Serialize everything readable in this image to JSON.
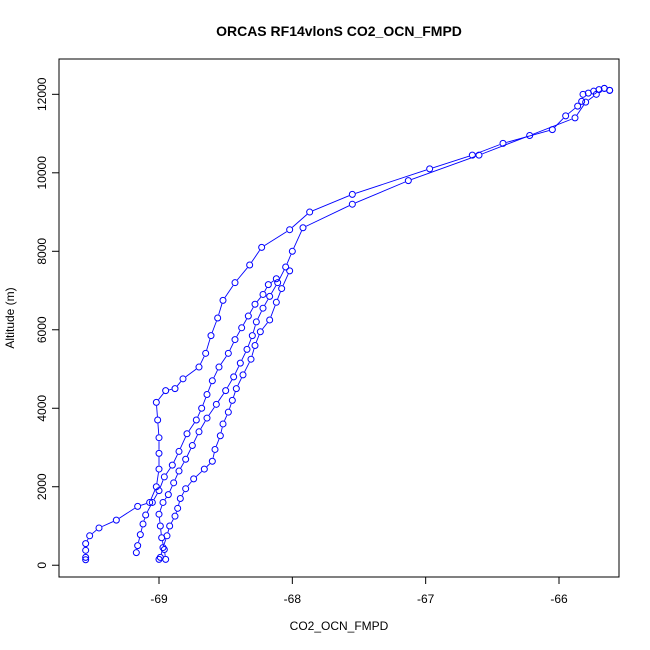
{
  "chart_data": {
    "type": "scatter",
    "title": "ORCAS RF14vlonS CO2_OCN_FMPD",
    "xlabel": "CO2_OCN_FMPD",
    "ylabel": "Altitude (m)",
    "xlim": [
      -69.75,
      -65.55
    ],
    "ylim": [
      -300,
      12900
    ],
    "xticks": [
      -69,
      -68,
      -67,
      -66
    ],
    "yticks": [
      0,
      2000,
      4000,
      6000,
      8000,
      10000,
      12000
    ],
    "color": "#0000ff",
    "grid": false,
    "series": [
      {
        "style": "line+points",
        "points": [
          [
            -65.62,
            12100
          ],
          [
            -65.66,
            12150
          ],
          [
            -65.7,
            12120
          ],
          [
            -65.74,
            12080
          ],
          [
            -65.78,
            12030
          ],
          [
            -65.82,
            12000
          ],
          [
            -65.83,
            11820
          ],
          [
            -65.86,
            11700
          ],
          [
            -65.95,
            11450
          ],
          [
            -66.05,
            11100
          ],
          [
            -66.42,
            10750
          ],
          [
            -66.65,
            10450
          ],
          [
            -66.97,
            10100
          ],
          [
            -67.55,
            9450
          ],
          [
            -67.87,
            9000
          ],
          [
            -68.02,
            8550
          ],
          [
            -68.23,
            8100
          ],
          [
            -68.32,
            7650
          ],
          [
            -68.43,
            7200
          ],
          [
            -68.52,
            6750
          ],
          [
            -68.56,
            6300
          ],
          [
            -68.61,
            5850
          ],
          [
            -68.65,
            5400
          ],
          [
            -68.7,
            5050
          ],
          [
            -68.82,
            4750
          ],
          [
            -68.88,
            4500
          ],
          [
            -68.95,
            4450
          ],
          [
            -69.02,
            4150
          ],
          [
            -69.01,
            3700
          ],
          [
            -69.0,
            3250
          ],
          [
            -69.0,
            2850
          ],
          [
            -69.0,
            2450
          ],
          [
            -69.02,
            2000
          ],
          [
            -69.07,
            1600
          ],
          [
            -69.16,
            1500
          ],
          [
            -69.32,
            1150
          ],
          [
            -69.45,
            950
          ],
          [
            -69.52,
            750
          ],
          [
            -69.55,
            550
          ],
          [
            -69.55,
            380
          ],
          [
            -69.55,
            200
          ],
          [
            -69.55,
            140
          ]
        ]
      },
      {
        "style": "line+points",
        "points": [
          [
            -69.17,
            320
          ],
          [
            -69.16,
            500
          ],
          [
            -69.14,
            780
          ],
          [
            -69.12,
            1050
          ],
          [
            -69.1,
            1280
          ],
          [
            -69.05,
            1600
          ],
          [
            -69.0,
            1900
          ],
          [
            -68.96,
            2250
          ],
          [
            -68.9,
            2550
          ],
          [
            -68.85,
            2900
          ],
          [
            -68.79,
            3350
          ],
          [
            -68.72,
            3700
          ],
          [
            -68.68,
            4000
          ],
          [
            -68.64,
            4350
          ],
          [
            -68.6,
            4700
          ],
          [
            -68.55,
            5050
          ],
          [
            -68.48,
            5400
          ],
          [
            -68.43,
            5750
          ],
          [
            -68.38,
            6050
          ],
          [
            -68.33,
            6350
          ],
          [
            -68.28,
            6650
          ],
          [
            -68.22,
            6900
          ],
          [
            -68.18,
            7150
          ],
          [
            -68.12,
            7300
          ]
        ]
      },
      {
        "style": "line+points",
        "points": [
          [
            -68.02,
            7500
          ],
          [
            -68.08,
            7050
          ],
          [
            -68.12,
            6700
          ],
          [
            -68.17,
            6250
          ],
          [
            -68.24,
            5950
          ],
          [
            -68.28,
            5600
          ],
          [
            -68.31,
            5250
          ],
          [
            -68.37,
            4850
          ],
          [
            -68.42,
            4500
          ],
          [
            -68.45,
            4200
          ],
          [
            -68.48,
            3900
          ],
          [
            -68.52,
            3600
          ],
          [
            -68.54,
            3300
          ],
          [
            -68.58,
            2950
          ],
          [
            -68.6,
            2650
          ],
          [
            -68.66,
            2450
          ],
          [
            -68.74,
            2200
          ],
          [
            -68.8,
            1950
          ],
          [
            -68.84,
            1700
          ],
          [
            -68.86,
            1450
          ],
          [
            -68.88,
            1250
          ],
          [
            -68.92,
            1000
          ],
          [
            -68.94,
            750
          ],
          [
            -68.97,
            450
          ],
          [
            -68.99,
            200
          ],
          [
            -69.0,
            150
          ]
        ]
      },
      {
        "style": "line+points",
        "points": [
          [
            -68.95,
            150
          ],
          [
            -68.96,
            400
          ],
          [
            -68.98,
            700
          ],
          [
            -68.99,
            1000
          ],
          [
            -69.0,
            1300
          ],
          [
            -68.97,
            1600
          ],
          [
            -68.93,
            1800
          ],
          [
            -68.89,
            2100
          ],
          [
            -68.85,
            2400
          ],
          [
            -68.8,
            2700
          ],
          [
            -68.75,
            3050
          ],
          [
            -68.7,
            3400
          ],
          [
            -68.64,
            3750
          ],
          [
            -68.57,
            4100
          ],
          [
            -68.5,
            4450
          ],
          [
            -68.44,
            4800
          ],
          [
            -68.39,
            5150
          ],
          [
            -68.34,
            5500
          ],
          [
            -68.3,
            5850
          ],
          [
            -68.27,
            6200
          ],
          [
            -68.22,
            6550
          ],
          [
            -68.17,
            6850
          ],
          [
            -68.11,
            7200
          ],
          [
            -68.05,
            7600
          ],
          [
            -68.0,
            8000
          ],
          [
            -67.92,
            8600
          ],
          [
            -67.55,
            9200
          ],
          [
            -67.13,
            9800
          ],
          [
            -66.6,
            10450
          ],
          [
            -66.22,
            10950
          ],
          [
            -65.88,
            11400
          ],
          [
            -65.8,
            11800
          ],
          [
            -65.72,
            12000
          ],
          [
            -65.66,
            12150
          ],
          [
            -65.62,
            12100
          ]
        ]
      }
    ]
  }
}
